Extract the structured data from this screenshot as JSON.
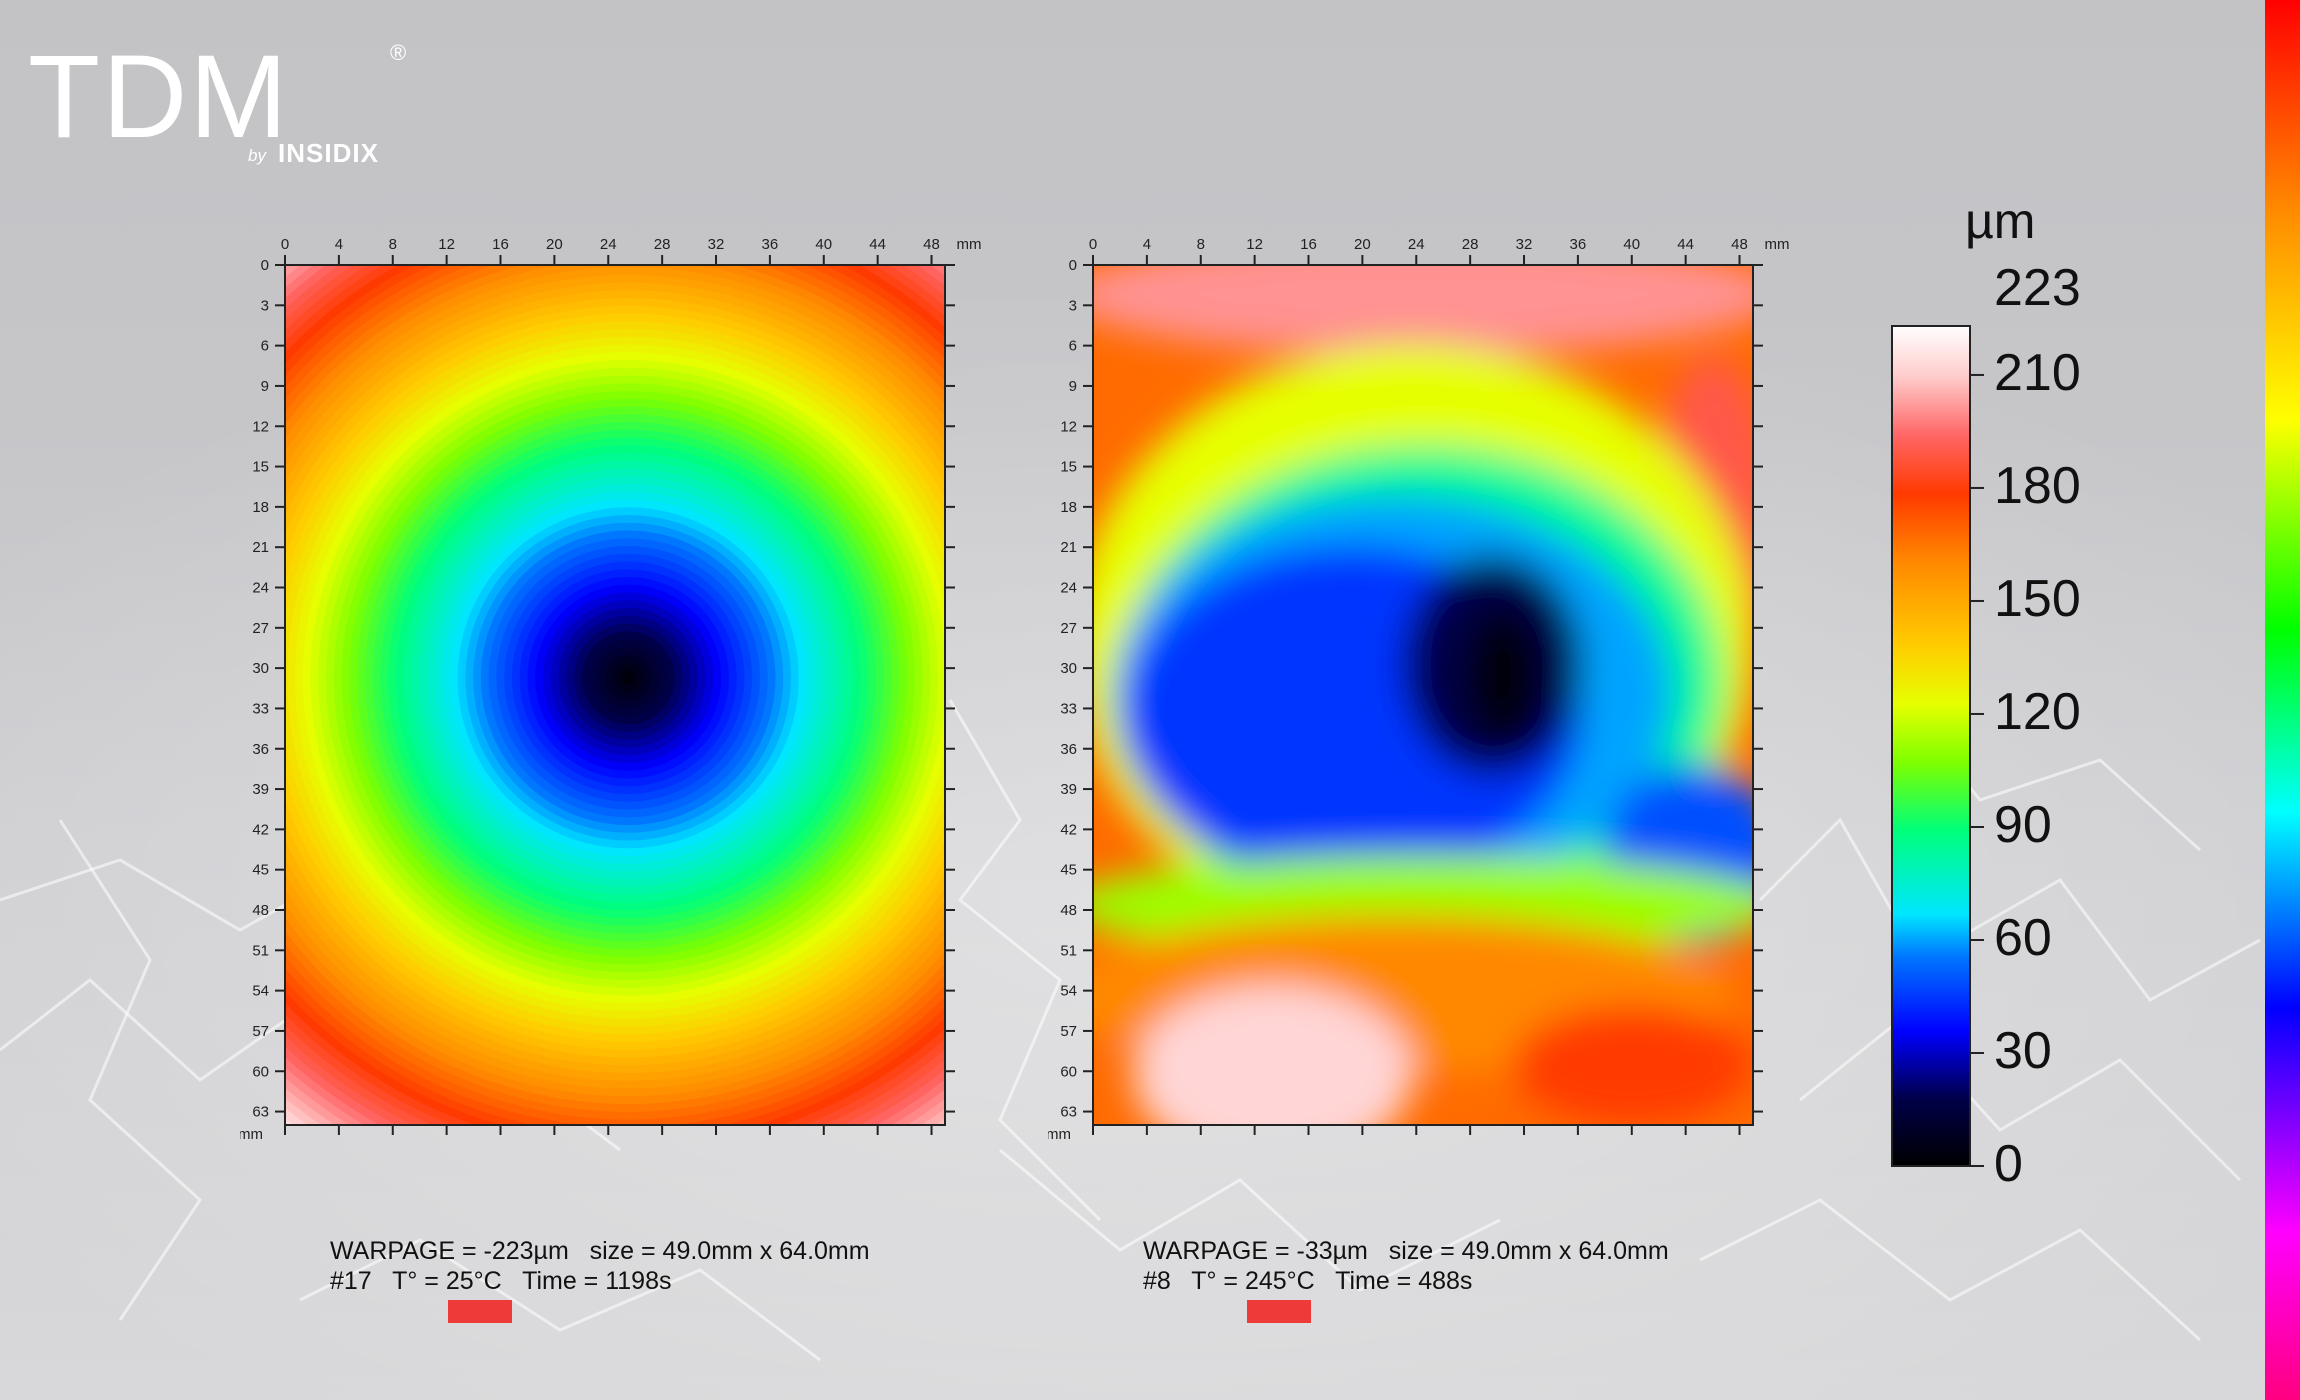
{
  "logo": {
    "text": "TDM",
    "registered": "®",
    "by": "by",
    "company": "INSIDIX"
  },
  "chart_data": [
    {
      "type": "heatmap",
      "unit": "mm",
      "x_ticks": [
        0,
        4,
        8,
        12,
        16,
        20,
        24,
        28,
        32,
        36,
        40,
        44,
        48
      ],
      "y_ticks": [
        0,
        3,
        6,
        9,
        12,
        15,
        18,
        21,
        24,
        27,
        30,
        33,
        36,
        39,
        42,
        45,
        48,
        51,
        54,
        57,
        60,
        63
      ],
      "xlim": [
        0,
        49
      ],
      "ylim": [
        0,
        64
      ],
      "grid": false,
      "color_unit": "µm",
      "color_range": [
        0,
        223
      ],
      "caption_line1": "WARPAGE = -223µm   size = 49.0mm x 64.0mm",
      "caption_line2": "#17   T° = 25°C   Time = 1198s"
    },
    {
      "type": "heatmap",
      "unit": "mm",
      "x_ticks": [
        0,
        4,
        8,
        12,
        16,
        20,
        24,
        28,
        32,
        36,
        40,
        44,
        48
      ],
      "y_ticks": [
        0,
        3,
        6,
        9,
        12,
        15,
        18,
        21,
        24,
        27,
        30,
        33,
        36,
        39,
        42,
        45,
        48,
        51,
        54,
        57,
        60,
        63
      ],
      "xlim": [
        0,
        49
      ],
      "ylim": [
        0,
        64
      ],
      "grid": false,
      "color_unit": "µm",
      "color_range": [
        0,
        223
      ],
      "caption_line1": "WARPAGE = -33µm   size = 49.0mm x 64.0mm",
      "caption_line2": "#8   T° = 245°C   Time = 488s"
    }
  ],
  "legend": {
    "unit": "µm",
    "max_label": "223",
    "ticks": [
      210,
      180,
      150,
      120,
      90,
      60,
      30,
      0
    ],
    "min": 0,
    "max": 223
  }
}
